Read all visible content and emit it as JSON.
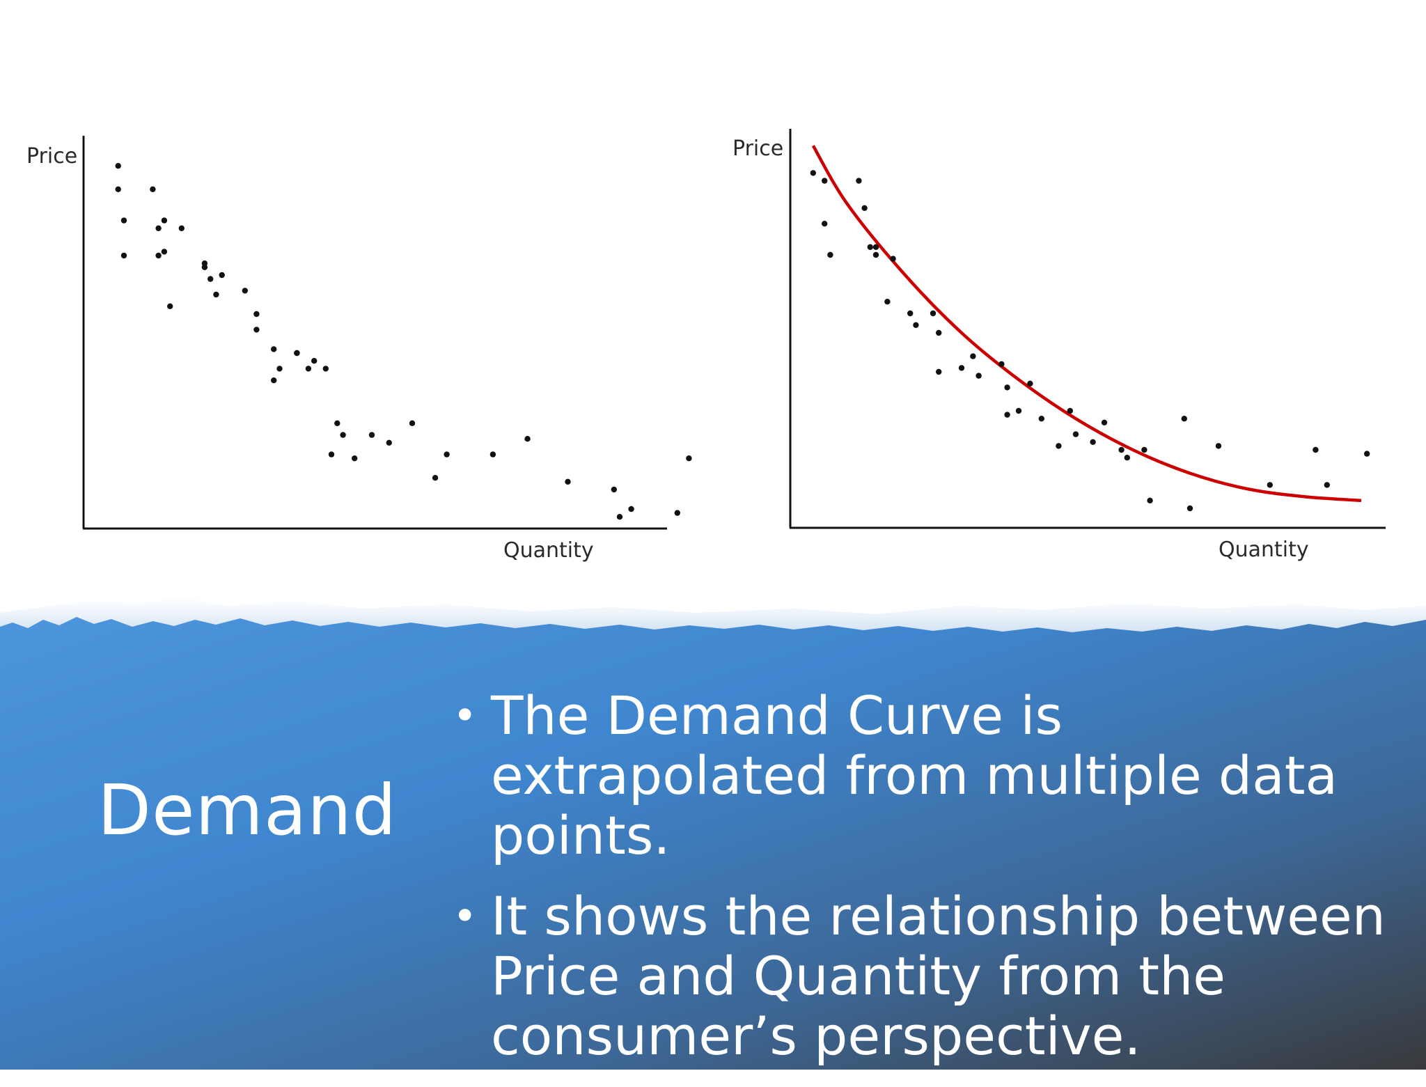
{
  "slide": {
    "title": "Demand",
    "bullets": [
      "The Demand Curve is extrapolated from multiple data points.",
      "It shows the relationship between Price and Quantity from the consumer’s perspective."
    ]
  },
  "colors": {
    "curve": "#cc0000",
    "points": "#111111",
    "axes": "#111111",
    "banner_light": "#4a90d9",
    "banner_dark": "#3a3a3a"
  },
  "chart_data": [
    {
      "type": "scatter",
      "xlabel": "Quantity",
      "ylabel": "Price",
      "xlim": [
        0,
        100
      ],
      "ylim": [
        0,
        100
      ],
      "grid": false,
      "points": [
        [
          6,
          93
        ],
        [
          6,
          87
        ],
        [
          7,
          79
        ],
        [
          7,
          70
        ],
        [
          12,
          87
        ],
        [
          13,
          70
        ],
        [
          13,
          77
        ],
        [
          14,
          79
        ],
        [
          14,
          71
        ],
        [
          15,
          57
        ],
        [
          17,
          77
        ],
        [
          21,
          68
        ],
        [
          21,
          67
        ],
        [
          22,
          64
        ],
        [
          23,
          60
        ],
        [
          24,
          65
        ],
        [
          28,
          61
        ],
        [
          30,
          51
        ],
        [
          30,
          55
        ],
        [
          33,
          46
        ],
        [
          33,
          38
        ],
        [
          34,
          41
        ],
        [
          37,
          45
        ],
        [
          37,
          45
        ],
        [
          39,
          41
        ],
        [
          40,
          43
        ],
        [
          42,
          41
        ],
        [
          43,
          19
        ],
        [
          44,
          27
        ],
        [
          45,
          24
        ],
        [
          47,
          18
        ],
        [
          50,
          24
        ],
        [
          53,
          22
        ],
        [
          57,
          27
        ],
        [
          61,
          13
        ],
        [
          63,
          19
        ],
        [
          71,
          19
        ],
        [
          77,
          23
        ],
        [
          84,
          12
        ],
        [
          92,
          10
        ],
        [
          93,
          3
        ],
        [
          95,
          5
        ],
        [
          103,
          4
        ],
        [
          105,
          18
        ]
      ]
    },
    {
      "type": "scatter",
      "xlabel": "Quantity",
      "ylabel": "Price",
      "xlim": [
        0,
        100
      ],
      "ylim": [
        0,
        100
      ],
      "grid": false,
      "points": [
        [
          4,
          91
        ],
        [
          6,
          89
        ],
        [
          6,
          78
        ],
        [
          7,
          70
        ],
        [
          12,
          89
        ],
        [
          13,
          82
        ],
        [
          14,
          72
        ],
        [
          15,
          72
        ],
        [
          15,
          70
        ],
        [
          17,
          58
        ],
        [
          18,
          69
        ],
        [
          21,
          55
        ],
        [
          22,
          52
        ],
        [
          25,
          55
        ],
        [
          26,
          40
        ],
        [
          26,
          50
        ],
        [
          30,
          41
        ],
        [
          32,
          44
        ],
        [
          33,
          39
        ],
        [
          37,
          42
        ],
        [
          38,
          36
        ],
        [
          38,
          29
        ],
        [
          40,
          30
        ],
        [
          42,
          37
        ],
        [
          44,
          28
        ],
        [
          47,
          21
        ],
        [
          49,
          30
        ],
        [
          50,
          24
        ],
        [
          53,
          22
        ],
        [
          55,
          27
        ],
        [
          58,
          20
        ],
        [
          59,
          18
        ],
        [
          62,
          20
        ],
        [
          63,
          7
        ],
        [
          69,
          28
        ],
        [
          70,
          5
        ],
        [
          75,
          21
        ],
        [
          84,
          11
        ],
        [
          92,
          20
        ],
        [
          94,
          11
        ],
        [
          101,
          19
        ]
      ],
      "curve": {
        "type": "line",
        "x": [
          4,
          10,
          20,
          30,
          40,
          50,
          60,
          70,
          80,
          90,
          100
        ],
        "y": [
          98,
          83,
          65,
          50,
          38,
          28,
          20,
          14,
          10,
          8,
          7
        ]
      }
    }
  ]
}
